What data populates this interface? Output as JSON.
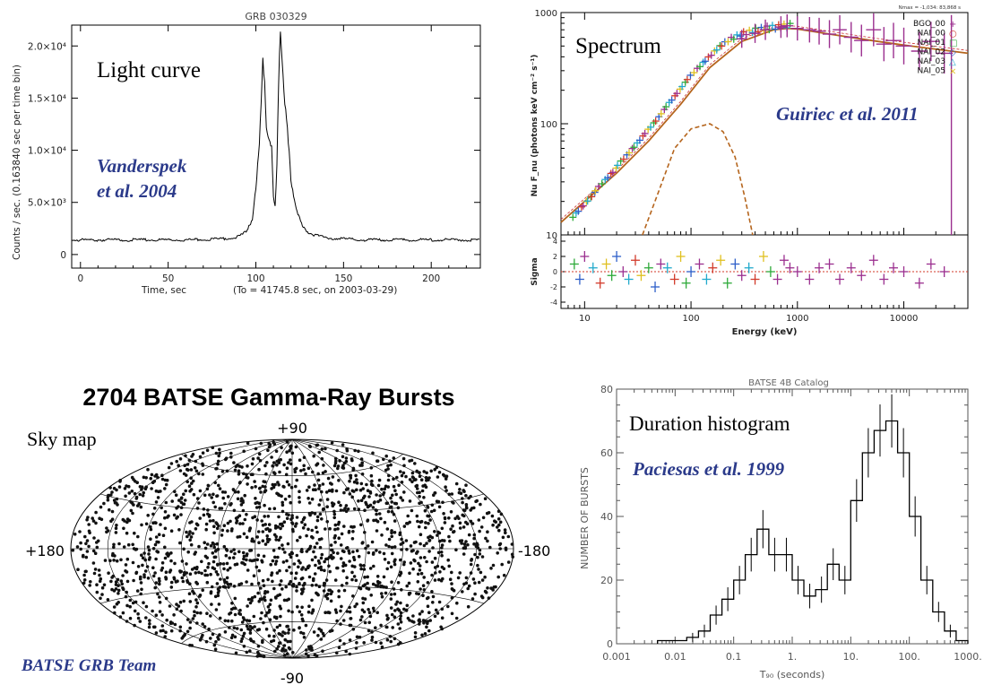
{
  "colors": {
    "axis": "#000000",
    "faint_axis": "#555555",
    "citation": "#2b3a8a",
    "model": "#b5651d",
    "series_purple": "#9b2f8f",
    "series_green": "#2eaa3a",
    "series_blue": "#2e5fc9",
    "series_cyan": "#22aacc",
    "series_yellow": "#e0c020",
    "series_red": "#d23a2a"
  },
  "chart_data": [
    {
      "type": "line",
      "title": "GRB 030329",
      "panel_label": "Light curve",
      "citation": "Vanderspek\net al. 2004",
      "xlabel": "Time, sec",
      "xlabel_note": "(To = 41745.8 sec,  on 2003-03-29)",
      "ylabel": "Counts / sec.  (0.163840 sec per time bin)",
      "xlim": [
        -5,
        228
      ],
      "ylim": [
        -1300,
        22000
      ],
      "x_ticks": [
        "0",
        "50",
        "100",
        "150",
        "200"
      ],
      "x_tick_values": [
        0,
        50,
        100,
        150,
        200
      ],
      "y_ticks": [
        "0",
        "5.0×10³",
        "1.0×10⁴",
        "1.5×10⁴",
        "2.0×10⁴"
      ],
      "y_tick_values": [
        0,
        5000,
        10000,
        15000,
        20000
      ],
      "series": [
        {
          "x": [
            -5,
            20,
            40,
            60,
            80,
            90,
            95,
            98,
            100,
            102,
            103,
            104,
            105,
            106,
            107,
            108,
            109,
            110,
            111,
            112,
            113,
            114,
            115,
            116,
            117,
            118,
            119,
            120,
            122,
            124,
            126,
            128,
            130,
            135,
            140,
            150,
            160,
            180,
            200,
            228
          ],
          "y": [
            1400,
            1400,
            1400,
            1400,
            1500,
            1700,
            2200,
            3500,
            6500,
            11000,
            15000,
            18500,
            16000,
            12000,
            11000,
            10500,
            10000,
            5500,
            4500,
            9000,
            17000,
            21800,
            19000,
            16000,
            14000,
            12500,
            9500,
            7000,
            5000,
            3800,
            3000,
            2500,
            2100,
            1800,
            1600,
            1500,
            1400,
            1400,
            1400,
            1400
          ]
        }
      ]
    },
    {
      "type": "scatter",
      "panel_label": "Spectrum",
      "citation": "Guiriec et al. 2011",
      "header_note": "Nmax = -1,034: 83,868 s",
      "xlabel": "Energy (keV)",
      "ylabel": "Nu F_nu (photons keV cm⁻² s⁻¹)",
      "residual_ylabel": "Sigma",
      "x_scale": "log",
      "y_scale": "log",
      "xlim": [
        6,
        40000
      ],
      "ylim": [
        10,
        1000
      ],
      "x_ticks": [
        "10",
        "100",
        "1000",
        "10000"
      ],
      "x_tick_values": [
        10,
        100,
        1000,
        10000
      ],
      "y_ticks": [
        "10",
        "100",
        "1000"
      ],
      "y_tick_values": [
        10,
        100,
        1000
      ],
      "residual_ylim": [
        -4,
        4
      ],
      "residual_ticks": [
        "4",
        "2",
        "0",
        "-2",
        "-4"
      ],
      "residual_tick_values": [
        4,
        2,
        0,
        -2,
        -4
      ],
      "legend_position": "top-right",
      "legend": [
        {
          "name": "BGO_00",
          "color": "series_purple",
          "marker": "+"
        },
        {
          "name": "NAI_00",
          "color": "series_red",
          "marker": "○"
        },
        {
          "name": "NAI_01",
          "color": "series_green",
          "marker": "□"
        },
        {
          "name": "NAI_02",
          "color": "series_blue",
          "marker": "◇"
        },
        {
          "name": "NAI_03",
          "color": "series_cyan",
          "marker": "△"
        },
        {
          "name": "NAI_05",
          "color": "series_yellow",
          "marker": "×"
        }
      ],
      "model_band": {
        "x": [
          6,
          10,
          20,
          40,
          80,
          150,
          300,
          600,
          800,
          1000,
          2000,
          5000,
          10000,
          40000
        ],
        "y": [
          13,
          20,
          36,
          70,
          150,
          320,
          550,
          700,
          720,
          710,
          640,
          560,
          510,
          430
        ]
      },
      "model_thermal": {
        "x": [
          35,
          50,
          70,
          100,
          150,
          200,
          260,
          320,
          380
        ],
        "y": [
          10,
          25,
          60,
          90,
          100,
          85,
          50,
          22,
          10
        ]
      },
      "series": [
        {
          "name": "NAI",
          "x": [
            8,
            9,
            10,
            11,
            12,
            13,
            15,
            17,
            19,
            21,
            24,
            27,
            30,
            34,
            38,
            43,
            48,
            54,
            60,
            68,
            76,
            85,
            95,
            110,
            125,
            140,
            160,
            180,
            200,
            230,
            260,
            300,
            340,
            390,
            440,
            500,
            560,
            640,
            720,
            820
          ],
          "y": [
            15,
            17,
            19,
            21,
            23,
            26,
            30,
            34,
            38,
            44,
            50,
            57,
            64,
            74,
            85,
            97,
            110,
            128,
            148,
            170,
            195,
            225,
            260,
            300,
            340,
            380,
            430,
            480,
            520,
            570,
            600,
            640,
            660,
            690,
            700,
            720,
            730,
            740,
            750,
            760
          ]
        },
        {
          "name": "BGO_00",
          "x": [
            300,
            400,
            500,
            700,
            800,
            1000,
            1300,
            1600,
            2000,
            2500,
            3200,
            4000,
            5200,
            6500,
            8000,
            10000,
            14000,
            18000,
            24000
          ],
          "y": [
            580,
            650,
            700,
            740,
            760,
            720,
            700,
            680,
            640,
            700,
            600,
            560,
            700,
            520,
            560,
            500,
            450,
            550,
            430
          ]
        }
      ],
      "residuals": {
        "x": [
          8,
          9,
          10,
          12,
          14,
          16,
          18,
          20,
          23,
          26,
          30,
          34,
          40,
          46,
          52,
          60,
          70,
          80,
          90,
          100,
          120,
          140,
          160,
          190,
          220,
          260,
          300,
          350,
          400,
          480,
          560,
          650,
          750,
          850,
          1000,
          1300,
          1600,
          2000,
          2500,
          3200,
          4000,
          5200,
          6500,
          8000,
          10000,
          14000,
          18000,
          24000
        ],
        "y": [
          1,
          -1,
          2,
          0.5,
          -1.5,
          1,
          -0.5,
          2,
          0,
          -1,
          1.5,
          -0.5,
          0.5,
          -2,
          1,
          0.5,
          -1,
          2,
          -1.5,
          0,
          1,
          -1,
          0.5,
          1.5,
          -1.5,
          1,
          -0.5,
          0.5,
          -1,
          2,
          0,
          -1,
          1.5,
          0.5,
          0,
          -1,
          0.5,
          1,
          -1,
          0.5,
          -0.5,
          1.5,
          -1,
          0.5,
          0,
          -1.5,
          1,
          0
        ]
      }
    },
    {
      "type": "scatter",
      "title": "2704 BATSE Gamma-Ray Bursts",
      "panel_label": "Sky map",
      "citation": "BATSE GRB Team",
      "projection": "aitoff",
      "labels": {
        "top": "+90",
        "bottom": "-90",
        "left": "+180",
        "right": "-180"
      },
      "count": 2704
    },
    {
      "type": "bar",
      "title": "BATSE 4B Catalog",
      "panel_label": "Duration histogram",
      "citation": "Paciesas et al. 1999",
      "xlabel": "T₉₀ (seconds)",
      "ylabel": "NUMBER OF BURSTS",
      "x_scale": "log",
      "xlim": [
        0.001,
        1000
      ],
      "ylim": [
        0,
        80
      ],
      "x_ticks": [
        "0.001",
        "0.01",
        "0.1",
        "1.",
        "10.",
        "100.",
        "1000."
      ],
      "x_tick_values": [
        0.001,
        0.01,
        0.1,
        1,
        10,
        100,
        1000
      ],
      "y_ticks": [
        "0",
        "20",
        "40",
        "60",
        "80"
      ],
      "y_tick_values": [
        0,
        20,
        40,
        60,
        80
      ],
      "bin_edges": [
        0.005,
        0.01,
        0.0158,
        0.0251,
        0.0398,
        0.0631,
        0.1,
        0.158,
        0.251,
        0.398,
        0.631,
        1,
        1.58,
        2.51,
        3.98,
        6.31,
        10,
        15.8,
        25.1,
        39.8,
        63.1,
        100,
        158,
        251,
        398,
        631,
        1000
      ],
      "counts": [
        1,
        1,
        2,
        4,
        9,
        14,
        20,
        28,
        36,
        28,
        28,
        20,
        15,
        17,
        25,
        20,
        45,
        60,
        67,
        70,
        60,
        40,
        20,
        10,
        4,
        1
      ]
    }
  ]
}
